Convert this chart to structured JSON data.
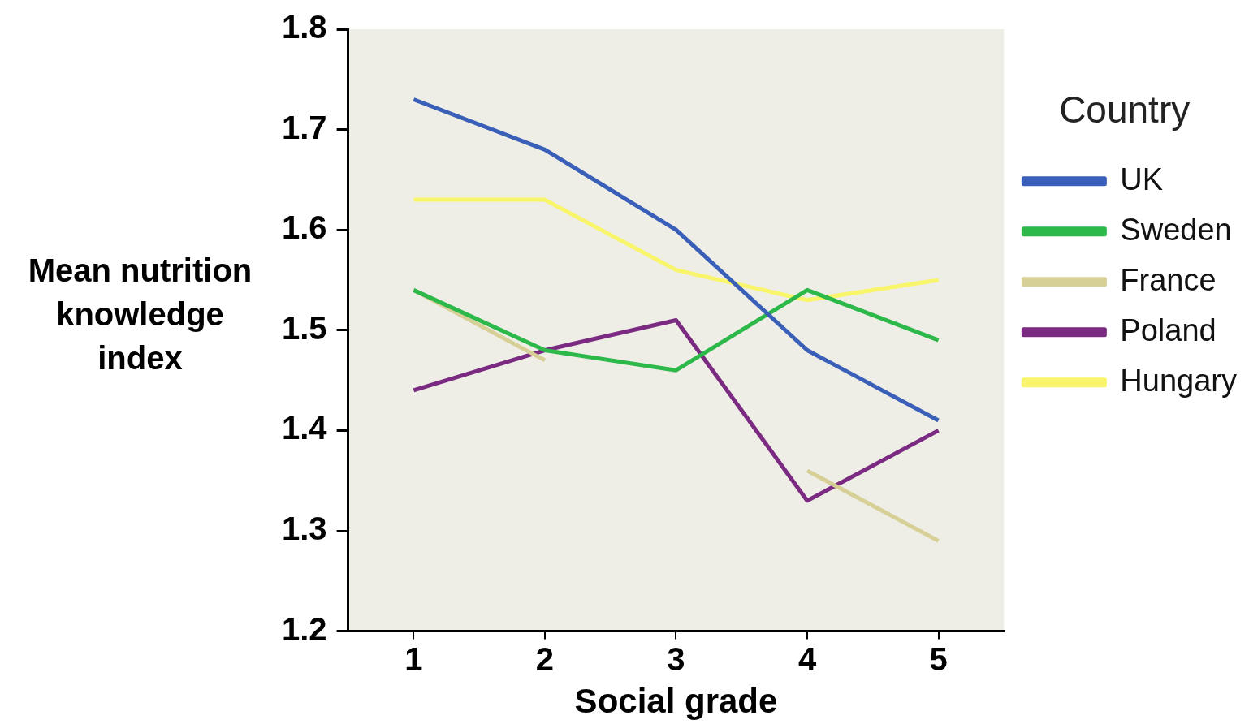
{
  "chart_data": {
    "type": "line",
    "xlabel": "Social grade",
    "ylabel": "Mean nutrition knowledge index",
    "legend_title": "Country",
    "categories": [
      "1",
      "2",
      "3",
      "4",
      "5"
    ],
    "ylim": [
      1.2,
      1.8
    ],
    "yticks": [
      1.2,
      1.3,
      1.4,
      1.5,
      1.6,
      1.7,
      1.8
    ],
    "grid": false,
    "legend": "right",
    "marker": "none",
    "line_style": "solid",
    "series": [
      {
        "name": "UK",
        "color": "#3a5fb8",
        "values": [
          1.73,
          1.68,
          1.6,
          1.48,
          1.41
        ]
      },
      {
        "name": "Sweden",
        "color": "#2db84a",
        "values": [
          1.54,
          1.48,
          1.46,
          1.54,
          1.49
        ]
      },
      {
        "name": "France",
        "color": "#d6cf96",
        "values": [
          1.54,
          1.47,
          null,
          1.36,
          1.29
        ]
      },
      {
        "name": "Poland",
        "color": "#7b2a82",
        "values": [
          1.44,
          1.48,
          1.51,
          1.33,
          1.4
        ]
      },
      {
        "name": "Hungary",
        "color": "#f8f56a",
        "values": [
          1.63,
          1.63,
          1.56,
          1.53,
          1.55
        ]
      }
    ]
  }
}
